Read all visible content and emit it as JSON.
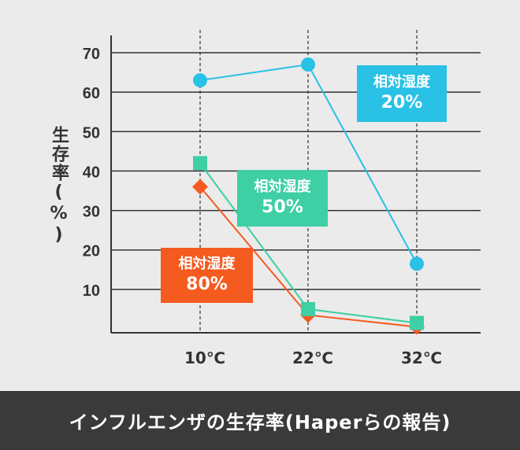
{
  "chart_data": {
    "type": "line",
    "title": "インフルエンザの生存率(Haperらの報告)",
    "ylabel": "生存率(%)",
    "xlabel": "",
    "categories": [
      "10℃",
      "22℃",
      "32℃"
    ],
    "yticks": [
      10,
      20,
      30,
      40,
      50,
      60,
      70
    ],
    "ylim": [
      0,
      70
    ],
    "grid": true,
    "series": [
      {
        "name": "相対湿度 20%",
        "title": "相対湿度",
        "value_label": "20%",
        "color": "#29c1e6",
        "marker": "circle",
        "values": [
          63,
          67,
          16.5
        ]
      },
      {
        "name": "相対湿度 50%",
        "title": "相対湿度",
        "value_label": "50%",
        "color": "#3ecfa5",
        "marker": "square",
        "values": [
          42,
          5,
          1.5
        ]
      },
      {
        "name": "相対湿度 80%",
        "title": "相対湿度",
        "value_label": "80%",
        "color": "#f55a1f",
        "marker": "diamond",
        "values": [
          36,
          3.5,
          0.5
        ]
      }
    ]
  }
}
